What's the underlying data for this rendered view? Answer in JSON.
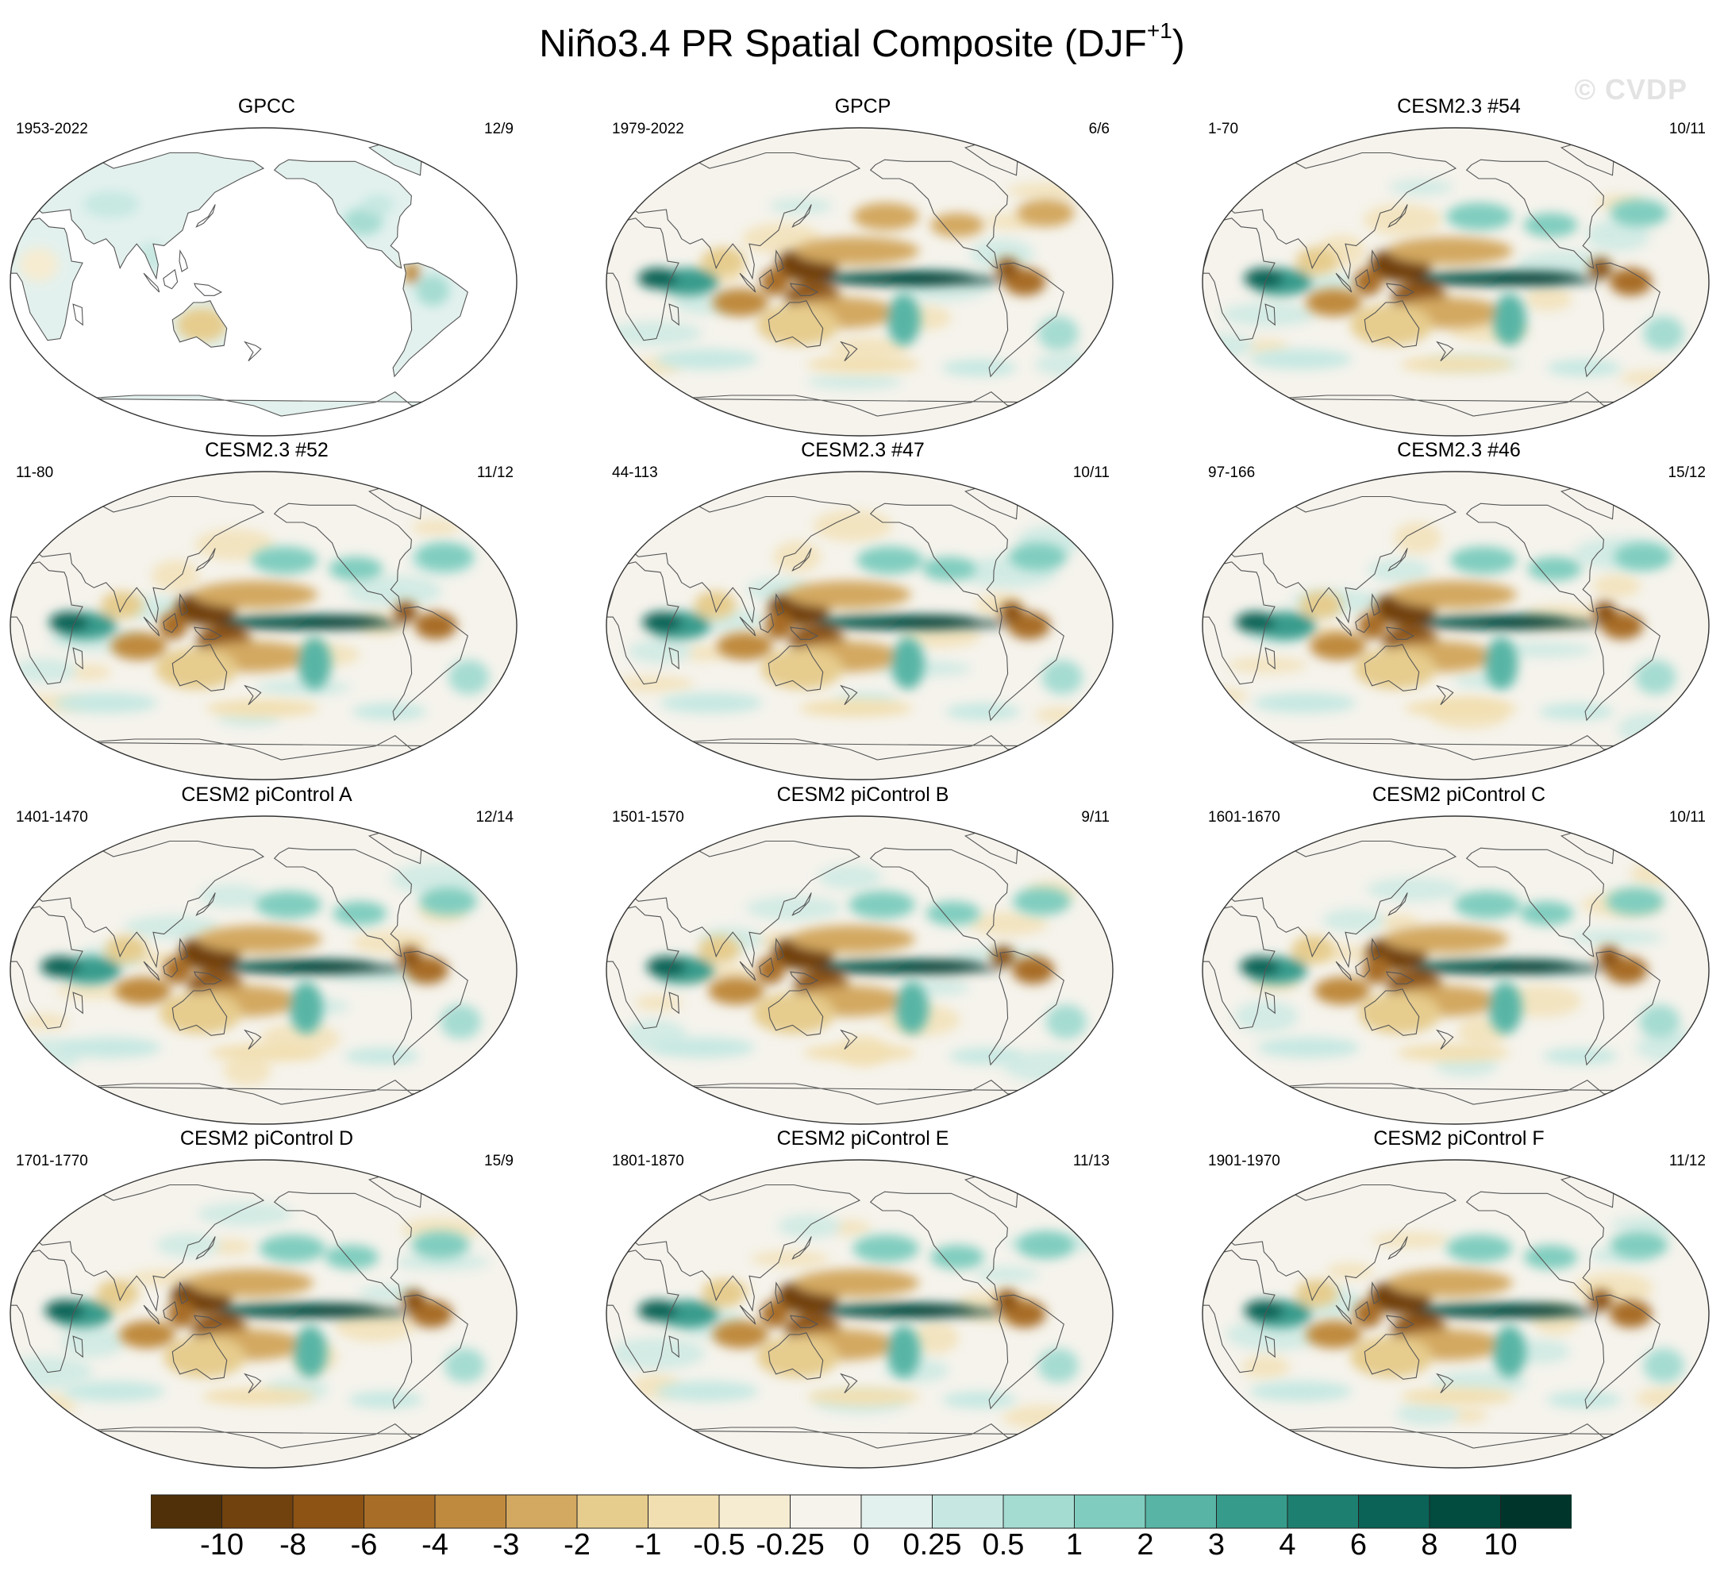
{
  "figure": {
    "title_main": "Niño3.4 PR Spatial Composite (DJF",
    "title_sup": "+1",
    "title_end": ")",
    "watermark": "© CVDP"
  },
  "panels": [
    {
      "name": "GPCC",
      "period": "1953-2022",
      "count": "12/9",
      "land_only": true
    },
    {
      "name": "GPCP",
      "period": "1979-2022",
      "count": "6/6",
      "land_only": false
    },
    {
      "name": "CESM2.3 #54",
      "period": "1-70",
      "count": "10/11",
      "land_only": false
    },
    {
      "name": "CESM2.3 #52",
      "period": "11-80",
      "count": "11/12",
      "land_only": false
    },
    {
      "name": "CESM2.3 #47",
      "period": "44-113",
      "count": "10/11",
      "land_only": false
    },
    {
      "name": "CESM2.3 #46",
      "period": "97-166",
      "count": "15/12",
      "land_only": false
    },
    {
      "name": "CESM2 piControl A",
      "period": "1401-1470",
      "count": "12/14",
      "land_only": false
    },
    {
      "name": "CESM2 piControl B",
      "period": "1501-1570",
      "count": "9/11",
      "land_only": false
    },
    {
      "name": "CESM2 piControl C",
      "period": "1601-1670",
      "count": "10/11",
      "land_only": false
    },
    {
      "name": "CESM2 piControl D",
      "period": "1701-1770",
      "count": "15/9",
      "land_only": false
    },
    {
      "name": "CESM2 piControl E",
      "period": "1801-1870",
      "count": "11/13",
      "land_only": false
    },
    {
      "name": "CESM2 piControl F",
      "period": "1901-1970",
      "count": "11/12",
      "land_only": false
    }
  ],
  "colorbar": {
    "labels": [
      "-10",
      "-8",
      "-6",
      "-4",
      "-3",
      "-2",
      "-1",
      "-0.5",
      "-0.25",
      "0",
      "0.25",
      "0.5",
      "1",
      "2",
      "3",
      "4",
      "6",
      "8",
      "10"
    ],
    "colors": [
      "#4f3008",
      "#71410e",
      "#8c5314",
      "#a86d26",
      "#bf8a3e",
      "#d3a860",
      "#e6cc8d",
      "#f2dfb1",
      "#f6ecd2",
      "#f5f3ec",
      "#e3f1ee",
      "#c7e8e2",
      "#a5dcd2",
      "#80cdbf",
      "#58b5a6",
      "#379b8c",
      "#1d7f70",
      "#0a6356",
      "#014b3f",
      "#00352c"
    ]
  }
}
